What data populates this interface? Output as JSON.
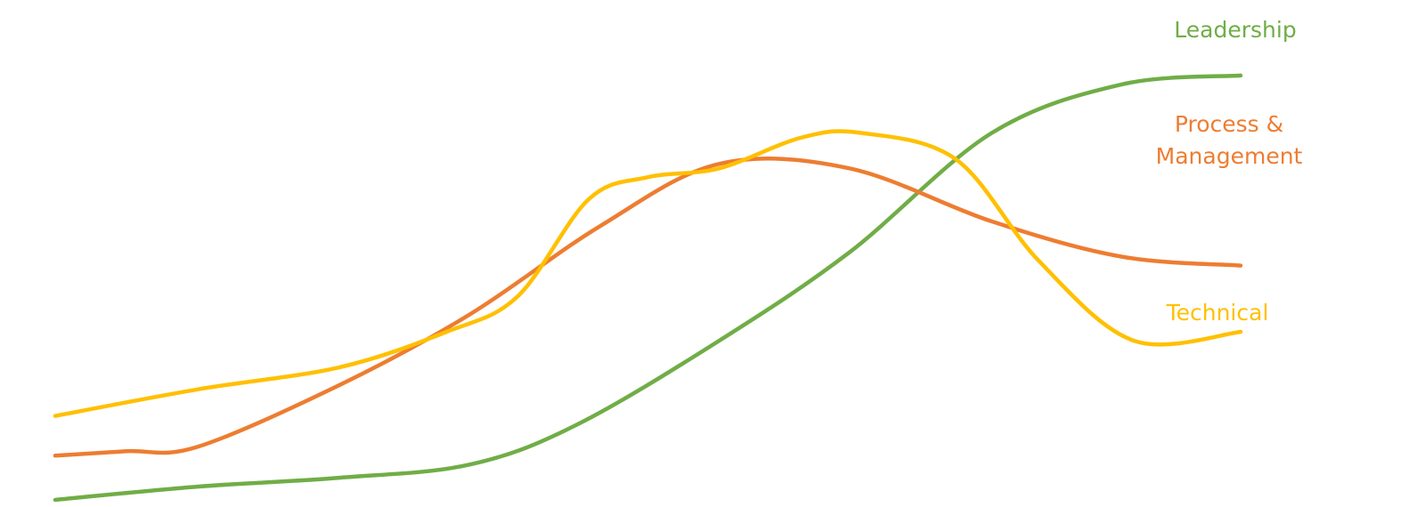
{
  "chart_data": {
    "type": "line",
    "title": "",
    "xlabel": "",
    "ylabel": "",
    "grid": false,
    "axes_visible": false,
    "legend": "direct labels at right end of each line",
    "xlim": [
      0,
      100
    ],
    "ylim": [
      0,
      100
    ],
    "series": [
      {
        "name": "Leadership",
        "color": "#70AD47",
        "x": [
          0,
          12,
          24,
          35,
          44,
          56,
          67,
          79,
          90,
          100
        ],
        "y": [
          0,
          3,
          5,
          8,
          17,
          36,
          56,
          83,
          94,
          96
        ]
      },
      {
        "name": "Process & Management",
        "color": "#ED7D31",
        "x": [
          0,
          6,
          12,
          24,
          35,
          46,
          56,
          67,
          79,
          90,
          100
        ],
        "y": [
          10,
          11,
          12,
          26,
          42,
          62,
          76,
          75,
          63,
          55,
          53
        ]
      },
      {
        "name": "Technical",
        "color": "#FFC000",
        "x": [
          0,
          12,
          24,
          33,
          39,
          45,
          50,
          56,
          63,
          68,
          76,
          83,
          91,
          100
        ],
        "y": [
          19,
          25,
          30,
          38,
          46,
          68,
          73,
          75,
          82,
          83,
          77,
          54,
          36,
          38
        ]
      }
    ]
  }
}
